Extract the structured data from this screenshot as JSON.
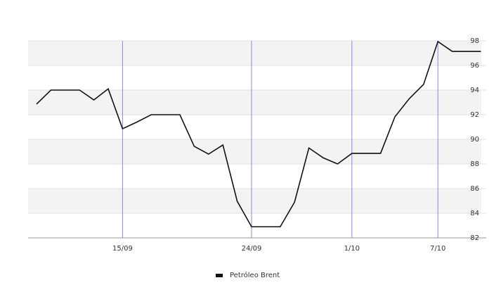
{
  "chart_data": {
    "type": "line",
    "categories": [
      null,
      null,
      null,
      null,
      null,
      null,
      "15/09",
      null,
      null,
      null,
      null,
      null,
      null,
      null,
      null,
      "24/09",
      null,
      null,
      null,
      null,
      null,
      null,
      "1/10",
      null,
      null,
      null,
      null,
      null,
      "7/10",
      null,
      null,
      null
    ],
    "series": [
      {
        "name": "Petróleo Brent",
        "color": "#111111",
        "values": [
          92.86,
          94.0,
          94.0,
          94.0,
          93.2,
          94.1,
          90.86,
          91.4,
          92.0,
          92.0,
          92.0,
          89.43,
          88.8,
          89.54,
          84.97,
          82.9,
          82.9,
          82.9,
          84.9,
          89.3,
          88.5,
          88.0,
          88.86,
          88.86,
          88.86,
          91.83,
          93.3,
          94.46,
          97.94,
          97.14,
          97.14,
          97.14
        ]
      }
    ],
    "ylim": [
      82,
      98
    ],
    "yticks": [
      82,
      84,
      86,
      88,
      90,
      92,
      94,
      96,
      98
    ],
    "grid": true
  }
}
